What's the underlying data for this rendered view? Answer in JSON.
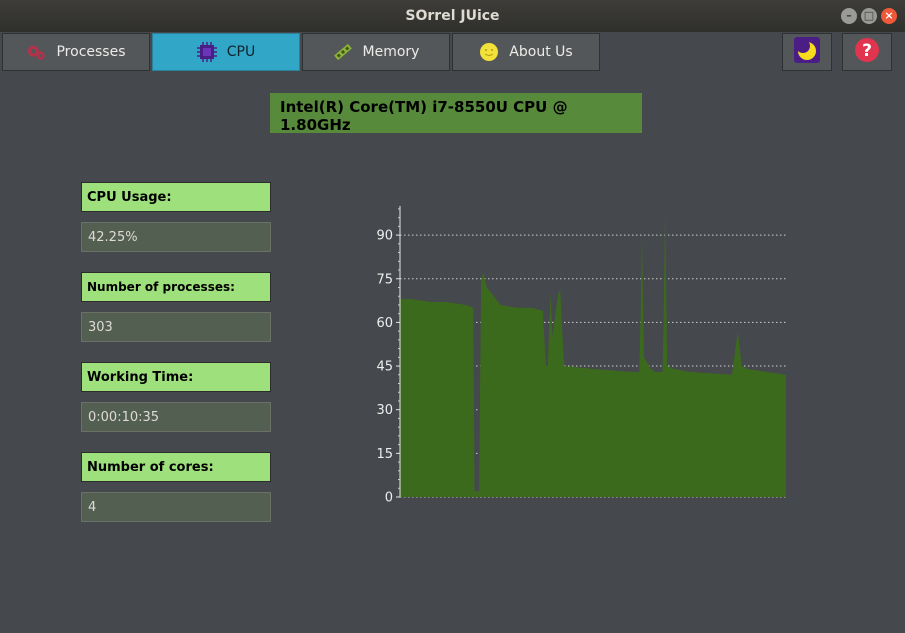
{
  "window": {
    "title": "SOrrel JUice"
  },
  "tabs": [
    {
      "label": "Processes",
      "icon": "gears-icon"
    },
    {
      "label": "CPU",
      "icon": "cpu-chip-icon"
    },
    {
      "label": "Memory",
      "icon": "memory-stick-icon"
    },
    {
      "label": "About Us",
      "icon": "smiley-icon"
    }
  ],
  "active_tab": "CPU",
  "toolbar": {
    "theme_icon": "moon-icon",
    "help_icon": "help-icon"
  },
  "cpu": {
    "name": "Intel(R) Core(TM) i7-8550U CPU @ 1.80GHz",
    "stats": [
      {
        "label": "CPU Usage:",
        "value": "42.25%"
      },
      {
        "label": "Number of processes:",
        "value": "303"
      },
      {
        "label": "Working Time:",
        "value": "0:00:10:35"
      },
      {
        "label": "Number of cores:",
        "value": "4"
      }
    ]
  },
  "colors": {
    "area_fill": "#3c6a1d",
    "label_bg": "#9ee17c",
    "active_tab": "#31a6c7",
    "header_bg": "#578a3b"
  },
  "chart_data": {
    "type": "area",
    "title": "",
    "xlabel": "",
    "ylabel": "",
    "ylim": [
      0,
      100
    ],
    "yticks": [
      0,
      15,
      30,
      45,
      60,
      75,
      90
    ],
    "grid": "horizontal dotted",
    "legend": "none",
    "series": [
      {
        "values": [
          [
            0,
            68
          ],
          [
            3,
            68
          ],
          [
            8,
            67
          ],
          [
            12,
            67
          ],
          [
            17,
            66
          ],
          [
            19,
            65
          ],
          [
            19.3,
            2
          ],
          [
            20.5,
            2
          ],
          [
            21,
            74
          ],
          [
            21.5,
            77
          ],
          [
            22.5,
            72
          ],
          [
            26,
            66
          ],
          [
            30,
            65
          ],
          [
            34,
            65
          ],
          [
            37,
            64
          ],
          [
            37.8,
            45
          ],
          [
            38.3,
            45
          ],
          [
            39,
            70
          ],
          [
            39.5,
            55
          ],
          [
            40,
            60
          ],
          [
            41,
            70
          ],
          [
            41.5,
            71
          ],
          [
            42.5,
            45
          ],
          [
            50,
            44
          ],
          [
            60,
            43
          ],
          [
            62,
            43
          ],
          [
            62.3,
            60
          ],
          [
            62.7,
            90
          ],
          [
            63.2,
            48
          ],
          [
            65,
            44
          ],
          [
            66,
            43
          ],
          [
            68,
            43
          ],
          [
            68.3,
            60
          ],
          [
            68.7,
            100
          ],
          [
            69.2,
            45
          ],
          [
            71,
            44
          ],
          [
            75,
            43
          ],
          [
            86,
            42
          ],
          [
            86.5,
            47
          ],
          [
            87.5,
            57
          ],
          [
            88.5,
            45
          ],
          [
            90,
            44
          ],
          [
            95,
            43
          ],
          [
            100,
            42
          ]
        ]
      }
    ]
  }
}
